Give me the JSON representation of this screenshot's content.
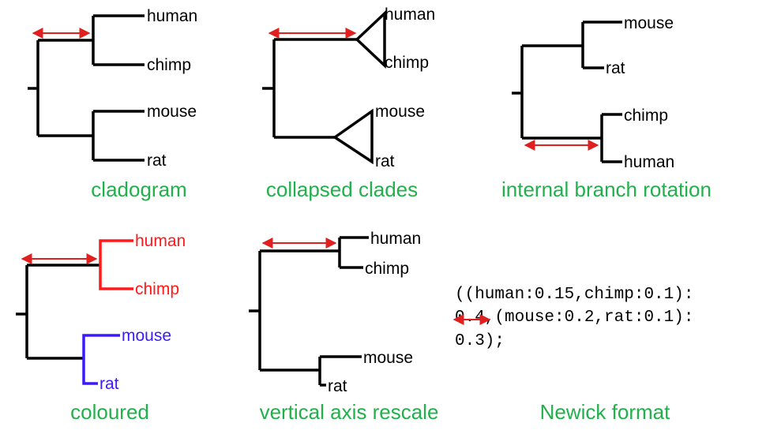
{
  "colors": {
    "branch": "#000000",
    "caption": "#22b04b",
    "arrow": "#e0201f",
    "primate_clade": "#ff1a1a",
    "rodent_clade": "#3a1aff"
  },
  "panels": {
    "cladogram": {
      "caption": "cladogram",
      "leaves": [
        "human",
        "chimp",
        "mouse",
        "rat"
      ]
    },
    "collapsed": {
      "caption": "collapsed clades",
      "leaves": [
        "human",
        "chimp",
        "mouse",
        "rat"
      ]
    },
    "rotation": {
      "caption": "internal branch rotation",
      "leaves": [
        "mouse",
        "rat",
        "chimp",
        "human"
      ]
    },
    "coloured": {
      "caption": "coloured",
      "leaves": [
        "human",
        "chimp",
        "mouse",
        "rat"
      ]
    },
    "rescale": {
      "caption": "vertical axis rescale",
      "leaves": [
        "human",
        "chimp",
        "mouse",
        "rat"
      ]
    },
    "newick": {
      "caption": "Newick format",
      "lines": [
        "((human:0.15,chimp:0.1):",
        "0.4,(mouse:0.2,rat:0.1):",
        "0.3);"
      ]
    }
  }
}
